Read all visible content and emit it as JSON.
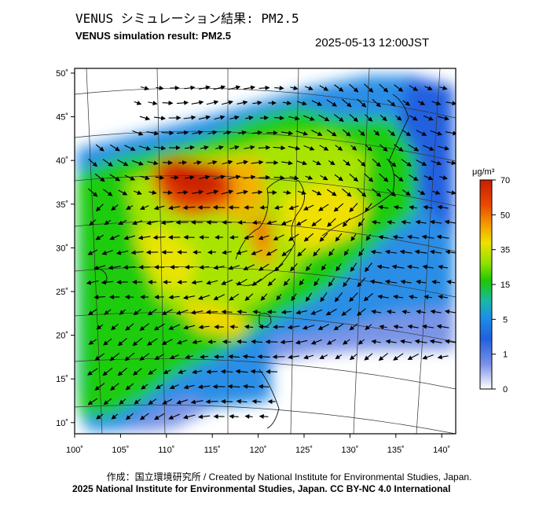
{
  "header": {
    "title_jp": "VENUS シミュレーション結果: PM2.5",
    "title_en": "VENUS simulation result: PM2.5",
    "timestamp": "2025-05-13 12:00JST"
  },
  "axes": {
    "lon_ticks": [
      "100˚",
      "105˚",
      "110˚",
      "115˚",
      "120˚",
      "125˚",
      "130˚",
      "135˚",
      "140˚"
    ],
    "lat_ticks": [
      "50˚",
      "45˚",
      "40˚",
      "35˚",
      "30˚",
      "25˚",
      "20˚",
      "15˚",
      "10˚"
    ]
  },
  "colorbar": {
    "unit": "μg/m³",
    "labels": [
      "70",
      "50",
      "35",
      "15",
      "5",
      "1",
      "0"
    ],
    "colors": [
      "#c81e00",
      "#e94a00",
      "#f5a000",
      "#f0e000",
      "#90e000",
      "#20c800",
      "#18b8a8",
      "#1c8ee8",
      "#2060e0",
      "#7890e8",
      "#ffffff"
    ]
  },
  "footer": {
    "credit": "作成：国立環境研究所 / Created by National Institute for Environmental Studies, Japan.",
    "copyright": "2025 National Institute for Environmental Studies, Japan. CC BY-NC 4.0 International"
  }
}
